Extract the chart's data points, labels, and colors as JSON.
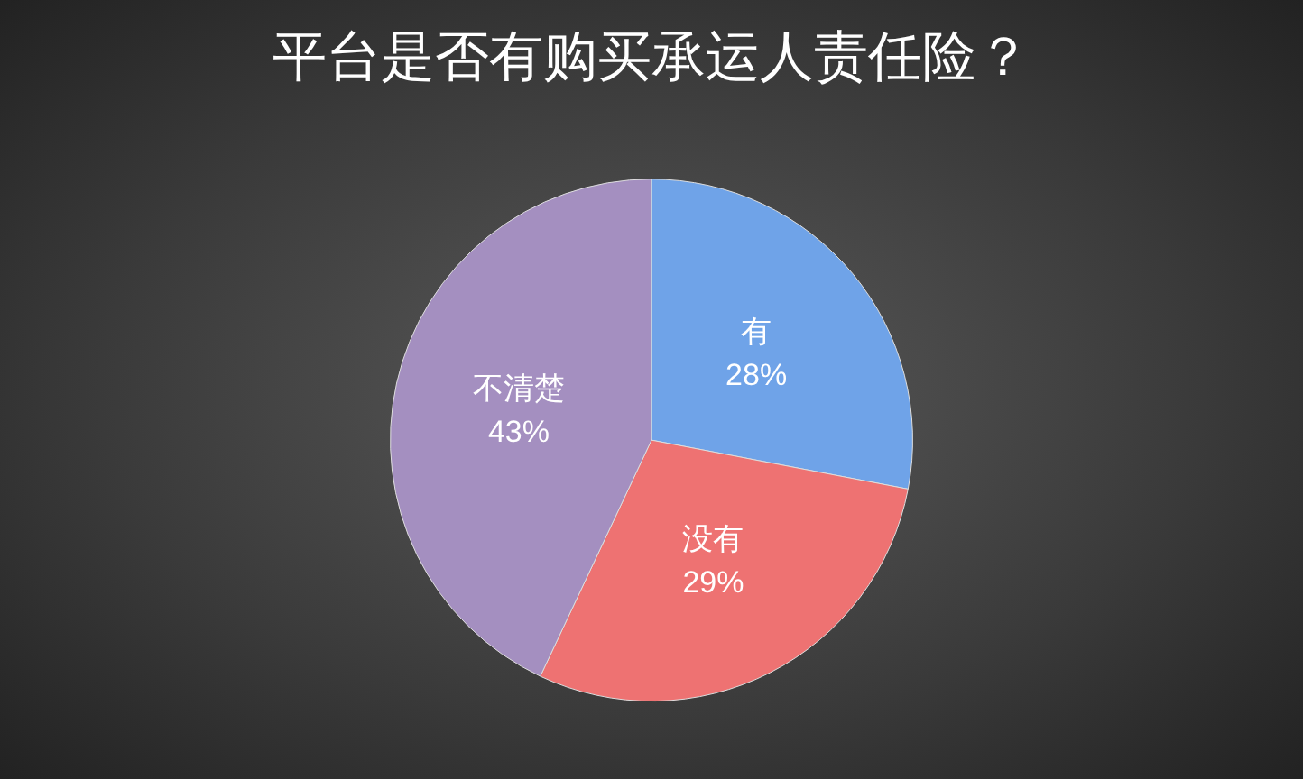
{
  "chart_data": {
    "type": "pie",
    "title": "平台是否有购买承运人责任险？",
    "categories": [
      "有",
      "没有",
      "不清楚"
    ],
    "values": [
      28,
      29,
      43
    ],
    "colors": [
      "#6fa3e8",
      "#ee7272",
      "#a48fc0"
    ],
    "value_labels": [
      "28%",
      "29%",
      "43%"
    ],
    "legend": false
  }
}
